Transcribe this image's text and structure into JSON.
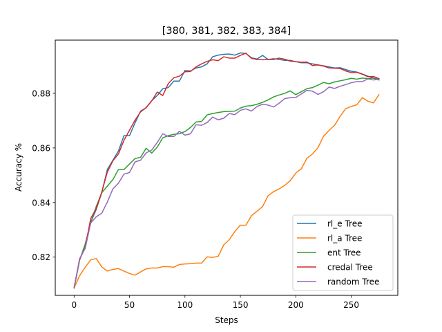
{
  "chart_data": {
    "type": "line",
    "title": "[380, 381, 382, 383, 384]",
    "xlabel": "Steps",
    "ylabel": "Accuracy %",
    "xlim": [
      -17,
      292
    ],
    "ylim": [
      0.806,
      0.8995
    ],
    "xticks": [
      0,
      50,
      100,
      150,
      200,
      250
    ],
    "xtick_labels": [
      "0",
      "50",
      "100",
      "150",
      "200",
      "250"
    ],
    "yticks": [
      0.82,
      0.84,
      0.86,
      0.88
    ],
    "ytick_labels": [
      "0.82",
      "0.84",
      "0.86",
      "0.88"
    ],
    "grid": false,
    "legend_position": "lower-right",
    "x": [
      0,
      5,
      10,
      15,
      20,
      25,
      30,
      35,
      40,
      45,
      50,
      55,
      60,
      65,
      70,
      75,
      80,
      85,
      90,
      95,
      100,
      105,
      110,
      115,
      120,
      125,
      130,
      135,
      140,
      145,
      150,
      155,
      160,
      165,
      170,
      175,
      180,
      185,
      190,
      195,
      200,
      205,
      210,
      215,
      220,
      225,
      230,
      235,
      240,
      245,
      250,
      255,
      260,
      265,
      270,
      275
    ],
    "series": [
      {
        "name": "rl_e Tree",
        "color": "#1f77b4",
        "values": [
          0.8087,
          0.8192,
          0.8237,
          0.8328,
          0.8375,
          0.8437,
          0.8521,
          0.8555,
          0.8589,
          0.8645,
          0.8645,
          0.8692,
          0.8735,
          0.8747,
          0.8773,
          0.8792,
          0.8817,
          0.8821,
          0.8845,
          0.8845,
          0.8884,
          0.8882,
          0.8893,
          0.8897,
          0.8908,
          0.8934,
          0.894,
          0.8943,
          0.8944,
          0.894,
          0.8948,
          0.8946,
          0.893,
          0.8926,
          0.8939,
          0.8924,
          0.8927,
          0.8924,
          0.8921,
          0.8921,
          0.8916,
          0.8912,
          0.8912,
          0.8908,
          0.8904,
          0.8901,
          0.8897,
          0.8893,
          0.8894,
          0.8887,
          0.8881,
          0.8878,
          0.8871,
          0.8863,
          0.8856,
          0.8849
        ]
      },
      {
        "name": "rl_a Tree",
        "color": "#ff7f0e",
        "values": [
          0.8087,
          0.8132,
          0.8163,
          0.819,
          0.8195,
          0.8164,
          0.8149,
          0.8155,
          0.8158,
          0.8149,
          0.814,
          0.8134,
          0.8146,
          0.8157,
          0.816,
          0.816,
          0.8165,
          0.8165,
          0.8163,
          0.8173,
          0.8175,
          0.8176,
          0.8178,
          0.8178,
          0.8201,
          0.8199,
          0.8203,
          0.8245,
          0.8264,
          0.8294,
          0.8317,
          0.8317,
          0.8352,
          0.8368,
          0.8385,
          0.8425,
          0.844,
          0.845,
          0.8463,
          0.848,
          0.8508,
          0.8524,
          0.8562,
          0.8578,
          0.8601,
          0.8643,
          0.8664,
          0.8683,
          0.8716,
          0.8744,
          0.8752,
          0.8758,
          0.8784,
          0.8771,
          0.8765,
          0.8795
        ]
      },
      {
        "name": "ent Tree",
        "color": "#2ca02c",
        "values": [
          0.8087,
          0.8189,
          0.8248,
          0.8326,
          0.8386,
          0.8436,
          0.846,
          0.8484,
          0.8521,
          0.8521,
          0.8541,
          0.8561,
          0.8566,
          0.8599,
          0.8581,
          0.8603,
          0.8637,
          0.8645,
          0.865,
          0.8652,
          0.866,
          0.8675,
          0.8695,
          0.8697,
          0.8721,
          0.8726,
          0.873,
          0.8733,
          0.8734,
          0.8735,
          0.8746,
          0.8753,
          0.8755,
          0.876,
          0.8767,
          0.8776,
          0.8787,
          0.8794,
          0.88,
          0.8809,
          0.8795,
          0.8806,
          0.8817,
          0.8821,
          0.883,
          0.884,
          0.8835,
          0.8842,
          0.8846,
          0.885,
          0.8855,
          0.8852,
          0.8856,
          0.8854,
          0.8856,
          0.8852
        ]
      },
      {
        "name": "credal Tree",
        "color": "#d62728",
        "values": [
          0.8087,
          0.8192,
          0.8235,
          0.8342,
          0.8378,
          0.8439,
          0.8512,
          0.8553,
          0.8578,
          0.8628,
          0.8665,
          0.8702,
          0.8732,
          0.8748,
          0.8772,
          0.8805,
          0.8792,
          0.8836,
          0.8857,
          0.8863,
          0.8879,
          0.888,
          0.8897,
          0.8908,
          0.8917,
          0.8923,
          0.892,
          0.8934,
          0.8929,
          0.8929,
          0.8939,
          0.8947,
          0.8928,
          0.8924,
          0.8923,
          0.8924,
          0.8924,
          0.8929,
          0.8925,
          0.8918,
          0.8916,
          0.8914,
          0.8915,
          0.8902,
          0.8904,
          0.89,
          0.8893,
          0.8892,
          0.8891,
          0.8882,
          0.8876,
          0.8877,
          0.887,
          0.8861,
          0.8862,
          0.8854
        ]
      },
      {
        "name": "random Tree",
        "color": "#9467bd",
        "values": [
          0.8087,
          0.8195,
          0.8232,
          0.8325,
          0.8348,
          0.8361,
          0.8402,
          0.845,
          0.8471,
          0.8504,
          0.851,
          0.8549,
          0.8555,
          0.8582,
          0.8592,
          0.862,
          0.8652,
          0.8642,
          0.8642,
          0.8661,
          0.8647,
          0.8652,
          0.8685,
          0.8683,
          0.8693,
          0.8713,
          0.8703,
          0.8709,
          0.8726,
          0.8722,
          0.8738,
          0.8743,
          0.8735,
          0.8752,
          0.876,
          0.8757,
          0.875,
          0.8764,
          0.8781,
          0.8784,
          0.8785,
          0.8798,
          0.8811,
          0.8808,
          0.8796,
          0.8806,
          0.8823,
          0.8818,
          0.8826,
          0.8832,
          0.8839,
          0.8843,
          0.8843,
          0.8853,
          0.8849,
          0.8852
        ]
      }
    ]
  }
}
